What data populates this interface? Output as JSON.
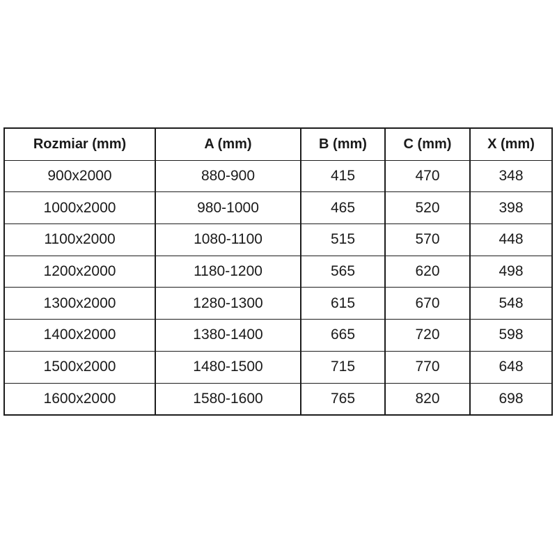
{
  "colors": {
    "background": "#ffffff",
    "border": "#1c1c1c",
    "text": "#1a1a1a"
  },
  "chart_data": {
    "type": "table",
    "title": "",
    "columns": [
      "Rozmiar (mm)",
      "A (mm)",
      "B (mm)",
      "C (mm)",
      "X (mm)"
    ],
    "rows": [
      [
        "900x2000",
        "880-900",
        "415",
        "470",
        "348"
      ],
      [
        "1000x2000",
        "980-1000",
        "465",
        "520",
        "398"
      ],
      [
        "1100x2000",
        "1080-1100",
        "515",
        "570",
        "448"
      ],
      [
        "1200x2000",
        "1180-1200",
        "565",
        "620",
        "498"
      ],
      [
        "1300x2000",
        "1280-1300",
        "615",
        "670",
        "548"
      ],
      [
        "1400x2000",
        "1380-1400",
        "665",
        "720",
        "598"
      ],
      [
        "1500x2000",
        "1480-1500",
        "715",
        "770",
        "648"
      ],
      [
        "1600x2000",
        "1580-1600",
        "765",
        "820",
        "698"
      ]
    ]
  }
}
